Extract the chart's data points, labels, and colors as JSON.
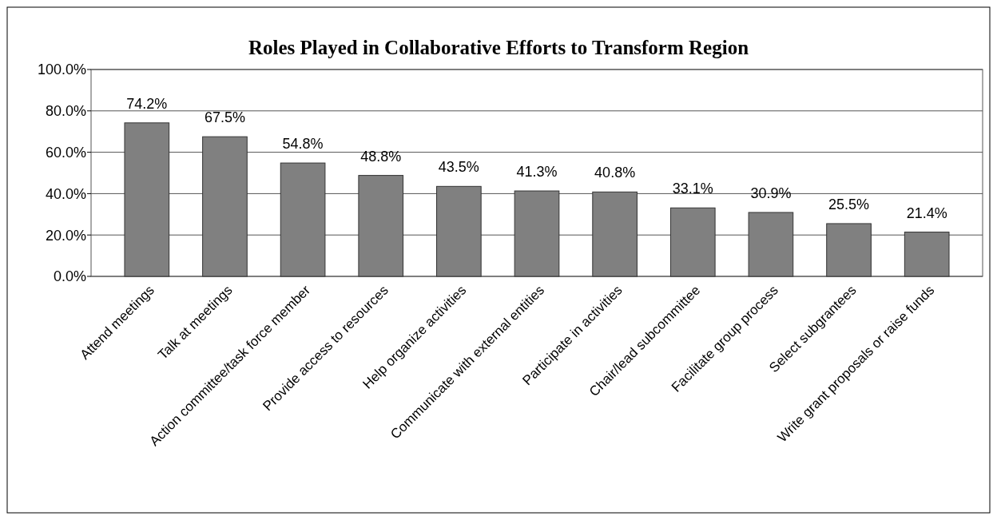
{
  "chart_data": {
    "type": "bar",
    "title": "Roles Played in Collaborative Efforts to Transform Region",
    "categories": [
      "Attend meetings",
      "Talk at meetings",
      "Action committee/task force member",
      "Provide access to resources",
      "Help organize activities",
      "Communicate with external entities",
      "Participate in activities",
      "Chair/lead subcommittee",
      "Facilitate group process",
      "Select subgrantees",
      "Write grant proposals or raise funds"
    ],
    "values": [
      74.2,
      67.5,
      54.8,
      48.8,
      43.5,
      41.3,
      40.8,
      33.1,
      30.9,
      25.5,
      21.4
    ],
    "value_labels": [
      "74.2%",
      "67.5%",
      "54.8%",
      "48.8%",
      "43.5%",
      "41.3%",
      "40.8%",
      "33.1%",
      "30.9%",
      "25.5%",
      "21.4%"
    ],
    "color": "#808080",
    "ylim": [
      0,
      100
    ],
    "yticks": [
      {
        "value": 0,
        "label": "0.0%"
      },
      {
        "value": 20,
        "label": "20.0%"
      },
      {
        "value": 40,
        "label": "40.0%"
      },
      {
        "value": 60,
        "label": "60.0%"
      },
      {
        "value": 80,
        "label": "80.0%"
      },
      {
        "value": 100,
        "label": "100.0%"
      }
    ],
    "grid": "y"
  }
}
